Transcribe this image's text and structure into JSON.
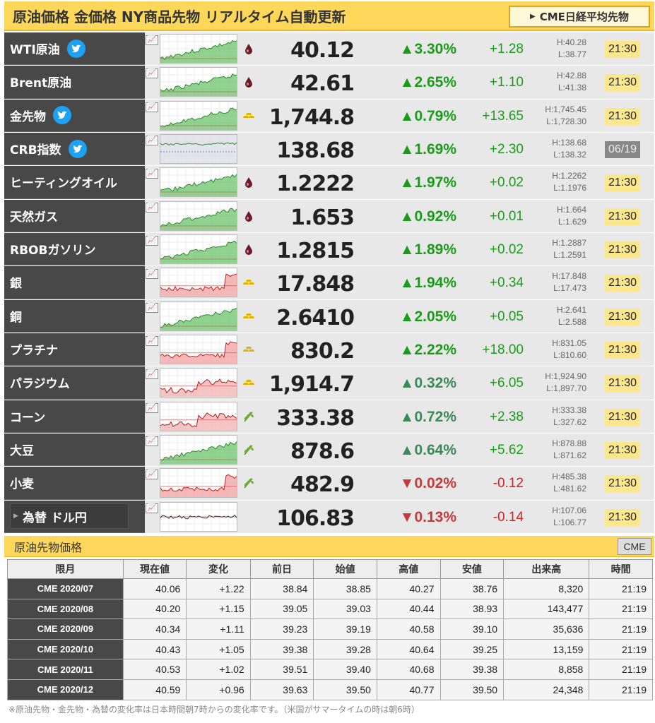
{
  "header": {
    "title": "原油価格 金価格 NY商品先物 リアルタイム自動更新",
    "cme_nikkei_button": "CME日経平均先物"
  },
  "colors": {
    "up": "#1a9c1a",
    "down": "#d81e1e",
    "header_bg": "#fcd75a",
    "name_bg": "#484848",
    "time_bg": "#fce78c"
  },
  "quotes": [
    {
      "name": "WTI原油",
      "twitter": true,
      "cat": "oil-drop-icon",
      "price": "40.12",
      "pct": "▲3.30%",
      "chg": "+1.28",
      "high": "H:40.28",
      "low": "L:38.77",
      "time": "21:30",
      "dir": "up",
      "pct_style": "up",
      "spark": "green"
    },
    {
      "name": "Brent原油",
      "twitter": false,
      "cat": "oil-drop-icon",
      "price": "42.61",
      "pct": "▲2.65%",
      "chg": "+1.10",
      "high": "H:42.88",
      "low": "L:41.38",
      "time": "21:30",
      "dir": "up",
      "pct_style": "up",
      "spark": "green"
    },
    {
      "name": "金先物",
      "twitter": true,
      "cat": "gold-bar-icon",
      "price": "1,744.8",
      "pct": "▲0.79%",
      "chg": "+13.65",
      "high": "H:1,745.45",
      "low": "L:1,728.30",
      "time": "21:30",
      "dir": "up",
      "pct_style": "up",
      "spark": "green"
    },
    {
      "name": "CRB指数",
      "twitter": true,
      "cat": "",
      "price": "138.68",
      "pct": "▲1.69%",
      "chg": "+2.30",
      "high": "H:138.68",
      "low": "L:138.32",
      "time": "06/19",
      "dir": "up",
      "pct_style": "up",
      "spark": "crb",
      "closed": true
    },
    {
      "name": "ヒーティングオイル",
      "twitter": false,
      "cat": "oil-drop-icon",
      "price": "1.2222",
      "pct": "▲1.97%",
      "chg": "+0.02",
      "high": "H:1.2262",
      "low": "L:1.1976",
      "time": "21:30",
      "dir": "up",
      "pct_style": "up",
      "spark": "green"
    },
    {
      "name": "天然ガス",
      "twitter": false,
      "cat": "oil-drop-icon",
      "price": "1.653",
      "pct": "▲0.92%",
      "chg": "+0.01",
      "high": "H:1.664",
      "low": "L:1.629",
      "time": "21:30",
      "dir": "up",
      "pct_style": "up",
      "spark": "green"
    },
    {
      "name": "RBOBガソリン",
      "twitter": false,
      "cat": "oil-drop-icon",
      "price": "1.2815",
      "pct": "▲1.89%",
      "chg": "+0.02",
      "high": "H:1.2887",
      "low": "L:1.2591",
      "time": "21:30",
      "dir": "up",
      "pct_style": "up",
      "spark": "green"
    },
    {
      "name": "銀",
      "twitter": false,
      "cat": "gold-bar-icon",
      "price": "17.848",
      "pct": "▲1.94%",
      "chg": "+0.34",
      "high": "H:17.848",
      "low": "L:17.473",
      "time": "21:30",
      "dir": "up",
      "pct_style": "up",
      "spark": "red"
    },
    {
      "name": "銅",
      "twitter": false,
      "cat": "gold-bar-icon",
      "price": "2.6410",
      "pct": "▲2.05%",
      "chg": "+0.05",
      "high": "H:2.641",
      "low": "L:2.588",
      "time": "21:30",
      "dir": "up",
      "pct_style": "up",
      "spark": "green"
    },
    {
      "name": "プラチナ",
      "twitter": false,
      "cat": "gold-bar-icon",
      "price": "830.2",
      "pct": "▲2.22%",
      "chg": "+18.00",
      "high": "H:831.05",
      "low": "L:810.60",
      "time": "21:30",
      "dir": "up",
      "pct_style": "up",
      "spark": "red"
    },
    {
      "name": "パラジウム",
      "twitter": false,
      "cat": "gold-bar-icon",
      "price": "1,914.7",
      "pct": "▲0.32%",
      "chg": "+6.05",
      "high": "H:1,924.90",
      "low": "L:1,897.70",
      "time": "21:30",
      "dir": "up",
      "pct_style": "up2",
      "spark": "redmix"
    },
    {
      "name": "コーン",
      "twitter": false,
      "cat": "grain-icon",
      "price": "333.38",
      "pct": "▲0.72%",
      "chg": "+2.38",
      "high": "H:333.38",
      "low": "L:327.62",
      "time": "21:30",
      "dir": "up",
      "pct_style": "up2",
      "spark": "redmix"
    },
    {
      "name": "大豆",
      "twitter": false,
      "cat": "grain-icon",
      "price": "878.6",
      "pct": "▲0.64%",
      "chg": "+5.62",
      "high": "H:878.88",
      "low": "L:871.62",
      "time": "21:30",
      "dir": "up",
      "pct_style": "up2",
      "spark": "green"
    },
    {
      "name": "小麦",
      "twitter": false,
      "cat": "grain-icon",
      "price": "482.9",
      "pct": "▼0.02%",
      "chg": "-0.12",
      "high": "H:485.38",
      "low": "L:481.62",
      "time": "21:30",
      "dir": "down",
      "pct_style": "down",
      "spark": "red"
    },
    {
      "name": "為替 ドル円",
      "twitter": false,
      "cat": "",
      "price": "106.83",
      "pct": "▼0.13%",
      "chg": "-0.14",
      "high": "H:107.06",
      "low": "L:106.77",
      "time": "21:30",
      "dir": "down",
      "pct_style": "down",
      "spark": "fx",
      "fx": true
    }
  ],
  "futures": {
    "title": "原油先物価格",
    "cme_button": "CME",
    "columns": [
      "限月",
      "現在値",
      "変化",
      "前日",
      "始値",
      "高値",
      "安値",
      "出来高",
      "時間"
    ],
    "rows": [
      [
        "CME 2020/07",
        "40.06",
        "+1.22",
        "38.84",
        "38.85",
        "40.27",
        "38.76",
        "8,320",
        "21:19"
      ],
      [
        "CME 2020/08",
        "40.20",
        "+1.15",
        "39.05",
        "39.03",
        "40.44",
        "38.93",
        "143,477",
        "21:19"
      ],
      [
        "CME 2020/09",
        "40.34",
        "+1.11",
        "39.23",
        "39.19",
        "40.58",
        "39.10",
        "35,636",
        "21:19"
      ],
      [
        "CME 2020/10",
        "40.43",
        "+1.05",
        "39.38",
        "39.28",
        "40.64",
        "39.25",
        "13,159",
        "21:19"
      ],
      [
        "CME 2020/11",
        "40.53",
        "+1.02",
        "39.51",
        "39.40",
        "40.68",
        "39.38",
        "8,858",
        "21:19"
      ],
      [
        "CME 2020/12",
        "40.59",
        "+0.96",
        "39.63",
        "39.50",
        "40.77",
        "39.50",
        "24,348",
        "21:19"
      ]
    ]
  },
  "note": "※原油先物・金先物・為替の変化率は日本時間朝7時からの変化率です。（米国がサマータイムの時は朝6時）"
}
